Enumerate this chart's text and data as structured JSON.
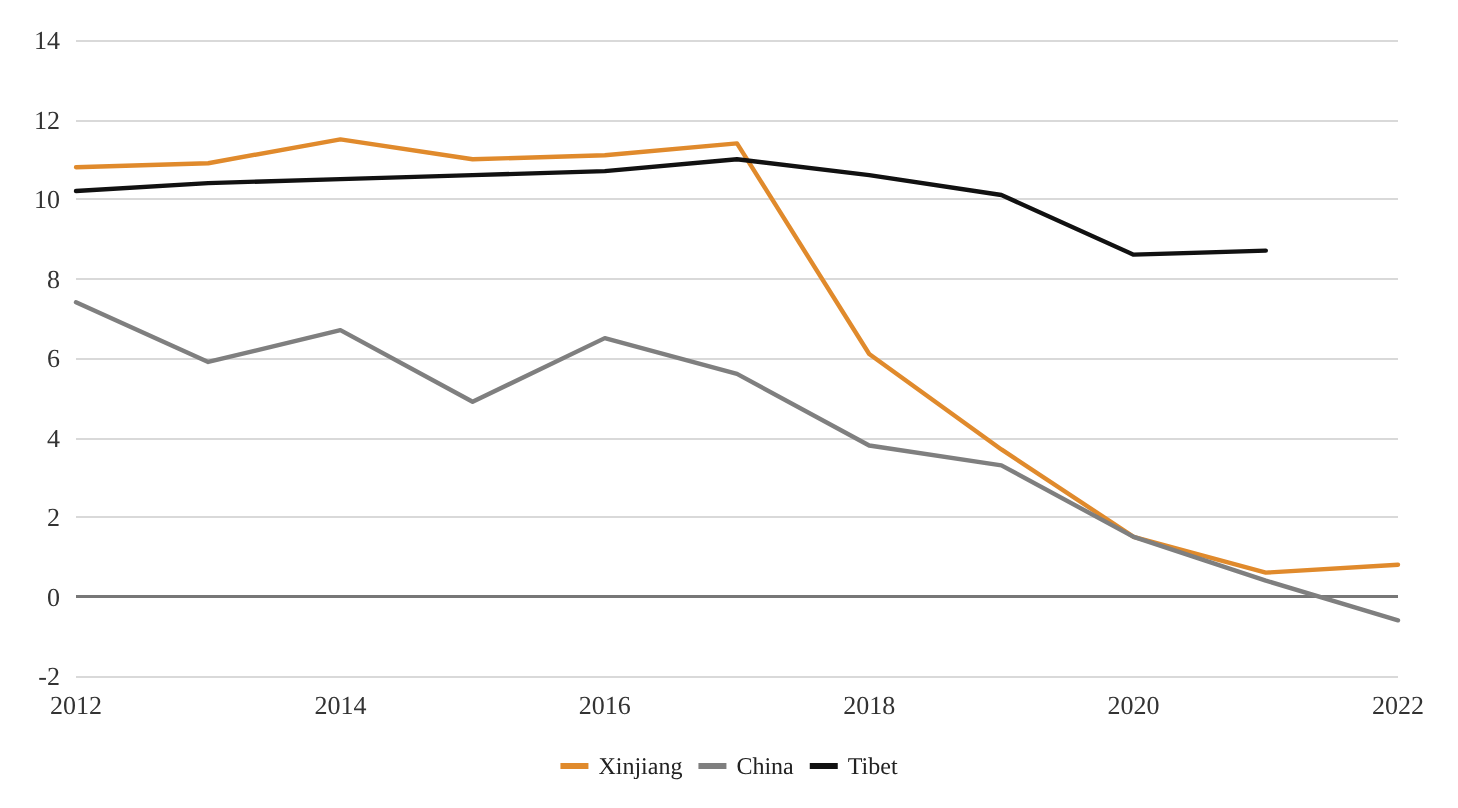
{
  "chart_data": {
    "type": "line",
    "x": [
      2012,
      2013,
      2014,
      2015,
      2016,
      2017,
      2018,
      2019,
      2020,
      2021,
      2022
    ],
    "series": [
      {
        "name": "Xinjiang",
        "color": "#e08a2c",
        "values": [
          10.8,
          10.9,
          11.5,
          11.0,
          11.1,
          11.4,
          6.1,
          3.7,
          1.5,
          0.6,
          0.8
        ]
      },
      {
        "name": "China",
        "color": "#7f7f7f",
        "values": [
          7.4,
          5.9,
          6.7,
          4.9,
          6.5,
          5.6,
          3.8,
          3.3,
          1.5,
          0.4,
          -0.6
        ]
      },
      {
        "name": "Tibet",
        "color": "#111111",
        "values": [
          10.2,
          10.4,
          10.5,
          10.6,
          10.7,
          11.0,
          10.6,
          10.1,
          8.6,
          8.7,
          null
        ]
      }
    ],
    "xlim": [
      2012,
      2022
    ],
    "xticks": [
      2012,
      2014,
      2016,
      2018,
      2020,
      2022
    ],
    "ylim": [
      -2,
      14
    ],
    "yticks": [
      -2,
      0,
      2,
      4,
      6,
      8,
      10,
      12,
      14
    ],
    "grid": "y",
    "legend": "bottom",
    "marker": "none",
    "line_style": "solid"
  }
}
